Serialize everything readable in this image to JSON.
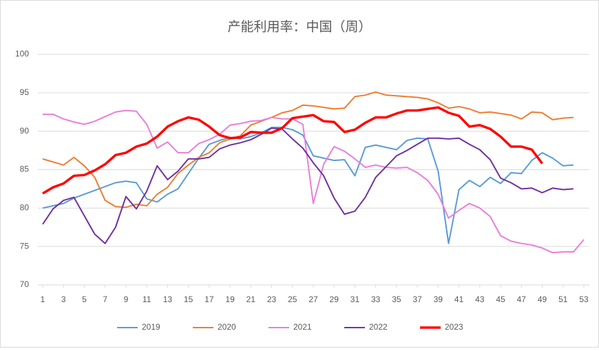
{
  "chart_data": {
    "type": "line",
    "title": "产能利用率：中国（周）",
    "x": [
      1,
      2,
      3,
      4,
      5,
      6,
      7,
      8,
      9,
      10,
      11,
      12,
      13,
      14,
      15,
      16,
      17,
      18,
      19,
      20,
      21,
      22,
      23,
      24,
      25,
      26,
      27,
      28,
      29,
      30,
      31,
      32,
      33,
      34,
      35,
      36,
      37,
      38,
      39,
      40,
      41,
      42,
      43,
      44,
      45,
      46,
      47,
      48,
      49,
      50,
      51,
      52,
      53
    ],
    "xlim": [
      1,
      53
    ],
    "xticks": [
      1,
      3,
      5,
      7,
      9,
      11,
      13,
      15,
      17,
      19,
      21,
      23,
      25,
      27,
      29,
      31,
      33,
      35,
      37,
      39,
      41,
      43,
      45,
      47,
      49,
      51,
      53
    ],
    "ylim": [
      70,
      100
    ],
    "yticks": [
      70,
      75,
      80,
      85,
      90,
      95,
      100
    ],
    "grid": true,
    "legend": "bottom",
    "series": [
      {
        "name": "2019",
        "color": "#5b9bd5",
        "values": [
          80.0,
          80.3,
          80.6,
          81.3,
          81.8,
          82.3,
          82.8,
          83.3,
          83.5,
          83.3,
          81.2,
          80.8,
          81.8,
          82.5,
          84.5,
          86.5,
          88.3,
          88.8,
          89.2,
          89.0,
          89.3,
          89.8,
          90.5,
          90.5,
          90.2,
          89.5,
          86.8,
          86.5,
          86.2,
          86.3,
          84.2,
          87.9,
          88.2,
          87.9,
          87.6,
          88.8,
          89.1,
          89.0,
          84.8,
          75.4,
          82.4,
          83.6,
          82.8,
          84.0,
          83.2,
          84.6,
          84.5,
          86.2,
          87.2,
          86.5,
          85.5,
          85.6,
          null
        ]
      },
      {
        "name": "2020",
        "color": "#ed7d31",
        "values": [
          86.4,
          86.0,
          85.6,
          86.6,
          85.5,
          84.0,
          81.0,
          80.2,
          80.1,
          80.5,
          80.3,
          81.8,
          82.7,
          84.5,
          85.6,
          86.6,
          87.2,
          88.5,
          89.0,
          89.4,
          90.8,
          91.3,
          91.8,
          92.4,
          92.7,
          93.4,
          93.3,
          93.1,
          92.9,
          93.0,
          94.5,
          94.7,
          95.1,
          94.7,
          94.6,
          94.5,
          94.4,
          94.2,
          93.7,
          93.0,
          93.2,
          92.9,
          92.4,
          92.5,
          92.3,
          92.1,
          91.6,
          92.5,
          92.4,
          91.5,
          91.7,
          91.8,
          null
        ]
      },
      {
        "name": "2021",
        "color": "#e87fd8",
        "values": [
          92.2,
          92.2,
          91.6,
          91.2,
          90.9,
          91.3,
          91.9,
          92.5,
          92.7,
          92.6,
          90.9,
          87.8,
          88.6,
          87.2,
          87.2,
          88.4,
          88.9,
          89.6,
          90.8,
          91.0,
          91.3,
          91.4,
          91.8,
          91.6,
          91.6,
          90.9,
          80.6,
          85.7,
          88.0,
          87.4,
          86.4,
          85.3,
          85.6,
          85.3,
          85.2,
          85.3,
          84.6,
          83.6,
          81.8,
          78.7,
          79.7,
          80.6,
          80.0,
          78.9,
          76.4,
          75.7,
          75.4,
          75.2,
          74.8,
          74.2,
          74.3,
          74.3,
          75.9
        ]
      },
      {
        "name": "2022",
        "color": "#7030a0",
        "values": [
          77.9,
          79.9,
          81.0,
          81.4,
          79.0,
          76.6,
          75.4,
          77.5,
          81.5,
          79.9,
          82.2,
          85.5,
          83.7,
          84.8,
          86.4,
          86.4,
          86.6,
          87.7,
          88.2,
          88.5,
          88.9,
          89.6,
          90.4,
          90.3,
          89.0,
          87.8,
          85.9,
          84.2,
          81.3,
          79.2,
          79.6,
          81.4,
          84.0,
          85.4,
          86.8,
          87.5,
          88.3,
          89.1,
          89.1,
          89.0,
          89.1,
          88.3,
          87.6,
          86.3,
          83.9,
          83.3,
          82.5,
          82.6,
          82.0,
          82.6,
          82.4,
          82.5,
          null
        ]
      },
      {
        "name": "2023",
        "color": "#ff0000",
        "values": [
          81.9,
          82.7,
          83.2,
          84.2,
          84.3,
          84.9,
          85.7,
          86.9,
          87.2,
          88.0,
          88.4,
          89.3,
          90.6,
          91.3,
          91.8,
          91.5,
          90.6,
          89.5,
          89.1,
          89.2,
          89.9,
          89.8,
          89.8,
          90.4,
          91.7,
          91.9,
          92.1,
          91.3,
          91.2,
          89.9,
          90.2,
          91.1,
          91.8,
          91.8,
          92.3,
          92.7,
          92.7,
          92.9,
          93.1,
          92.4,
          92.0,
          90.6,
          90.8,
          90.3,
          89.3,
          88.0,
          88.0,
          87.6,
          85.8,
          null,
          null,
          null,
          null
        ]
      }
    ]
  }
}
